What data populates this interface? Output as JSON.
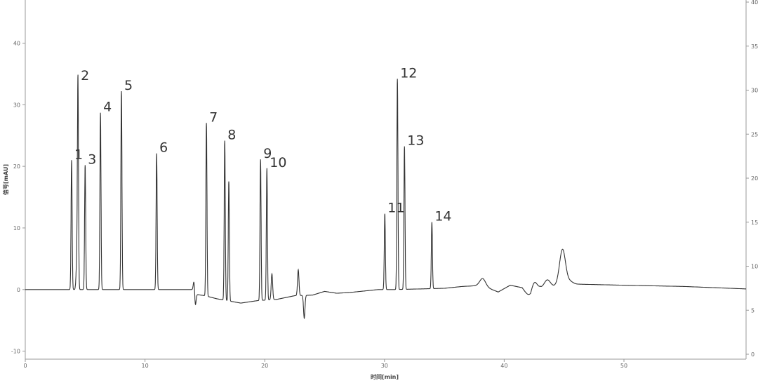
{
  "chart_data": {
    "type": "line",
    "title": "",
    "xlabel": "时间[min]",
    "ylabel": "信号[mAU]",
    "xlim": [
      0,
      60.2
    ],
    "ylim": [
      -11.3,
      47
    ],
    "y2lim": [
      0,
      40
    ],
    "xticks": [
      0,
      10,
      20,
      30,
      40,
      50
    ],
    "yticks": [
      -10,
      0,
      10,
      20,
      30,
      40
    ],
    "y2ticks": [
      0,
      5,
      10,
      15,
      20,
      25,
      30,
      35,
      40
    ],
    "grid": false,
    "line_color": "#333333",
    "baseline": [
      [
        0,
        0
      ],
      [
        3.6,
        0
      ],
      [
        14.0,
        0
      ],
      [
        14.3,
        -0.8
      ],
      [
        15.0,
        -1.0
      ],
      [
        16,
        -1.5
      ],
      [
        18,
        -2.2
      ],
      [
        19.4,
        -1.8
      ],
      [
        21,
        -1.6
      ],
      [
        22.5,
        -1.0
      ],
      [
        24,
        -0.9
      ],
      [
        25,
        -0.3
      ],
      [
        26,
        -0.6
      ],
      [
        27,
        -0.5
      ],
      [
        28,
        -0.3
      ],
      [
        29.5,
        0
      ],
      [
        31,
        0
      ],
      [
        33,
        0.1
      ],
      [
        35,
        0.2
      ],
      [
        36.5,
        0.5
      ],
      [
        37.5,
        0.6
      ],
      [
        38.2,
        0.6
      ],
      [
        39.5,
        -0.4
      ],
      [
        40.5,
        0.7
      ],
      [
        41.5,
        0.3
      ],
      [
        42.2,
        -1.6
      ],
      [
        43,
        0.2
      ],
      [
        44.4,
        0.6
      ],
      [
        45.5,
        0.9
      ],
      [
        50,
        0.7
      ],
      [
        55,
        0.5
      ],
      [
        60.2,
        0.1
      ]
    ],
    "peaks": [
      {
        "label": "1",
        "rt": 3.87,
        "height": 21.0
      },
      {
        "label": "",
        "rt": 4.3,
        "height": 4.3
      },
      {
        "label": "2",
        "rt": 4.4,
        "height": 33.8
      },
      {
        "label": "3",
        "rt": 5.0,
        "height": 20.2
      },
      {
        "label": "4",
        "rt": 6.28,
        "height": 28.7
      },
      {
        "label": "5",
        "rt": 8.03,
        "height": 32.2
      },
      {
        "label": "6",
        "rt": 10.97,
        "height": 22.1
      },
      {
        "label": "",
        "rt": 14.1,
        "height": 1.8
      },
      {
        "label": "",
        "rt": 14.2,
        "height": -2.2
      },
      {
        "label": "7",
        "rt": 15.13,
        "height": 28.1
      },
      {
        "label": "8",
        "rt": 16.66,
        "height": 25.9
      },
      {
        "label": "",
        "rt": 17.0,
        "height": 19.4
      },
      {
        "label": "9",
        "rt": 19.65,
        "height": 22.9
      },
      {
        "label": "10",
        "rt": 20.18,
        "height": 21.4
      },
      {
        "label": "",
        "rt": 20.6,
        "height": 4.2
      },
      {
        "label": "",
        "rt": 22.8,
        "height": 4.2
      },
      {
        "label": "",
        "rt": 23.3,
        "height": -3.7
      },
      {
        "label": "11",
        "rt": 30.03,
        "height": 12.3
      },
      {
        "label": "12",
        "rt": 31.08,
        "height": 34.2
      },
      {
        "label": "13",
        "rt": 31.67,
        "height": 23.2
      },
      {
        "label": "14",
        "rt": 33.96,
        "height": 10.8
      },
      {
        "label": "",
        "rt": 38.2,
        "height": 1.2
      },
      {
        "label": "",
        "rt": 42.5,
        "height": 2.0
      },
      {
        "label": "",
        "rt": 43.6,
        "height": 1.2
      },
      {
        "label": "",
        "rt": 44.87,
        "height": 5.8
      },
      {
        "label": "",
        "rt": 45.5,
        "height": 0.4
      }
    ]
  }
}
